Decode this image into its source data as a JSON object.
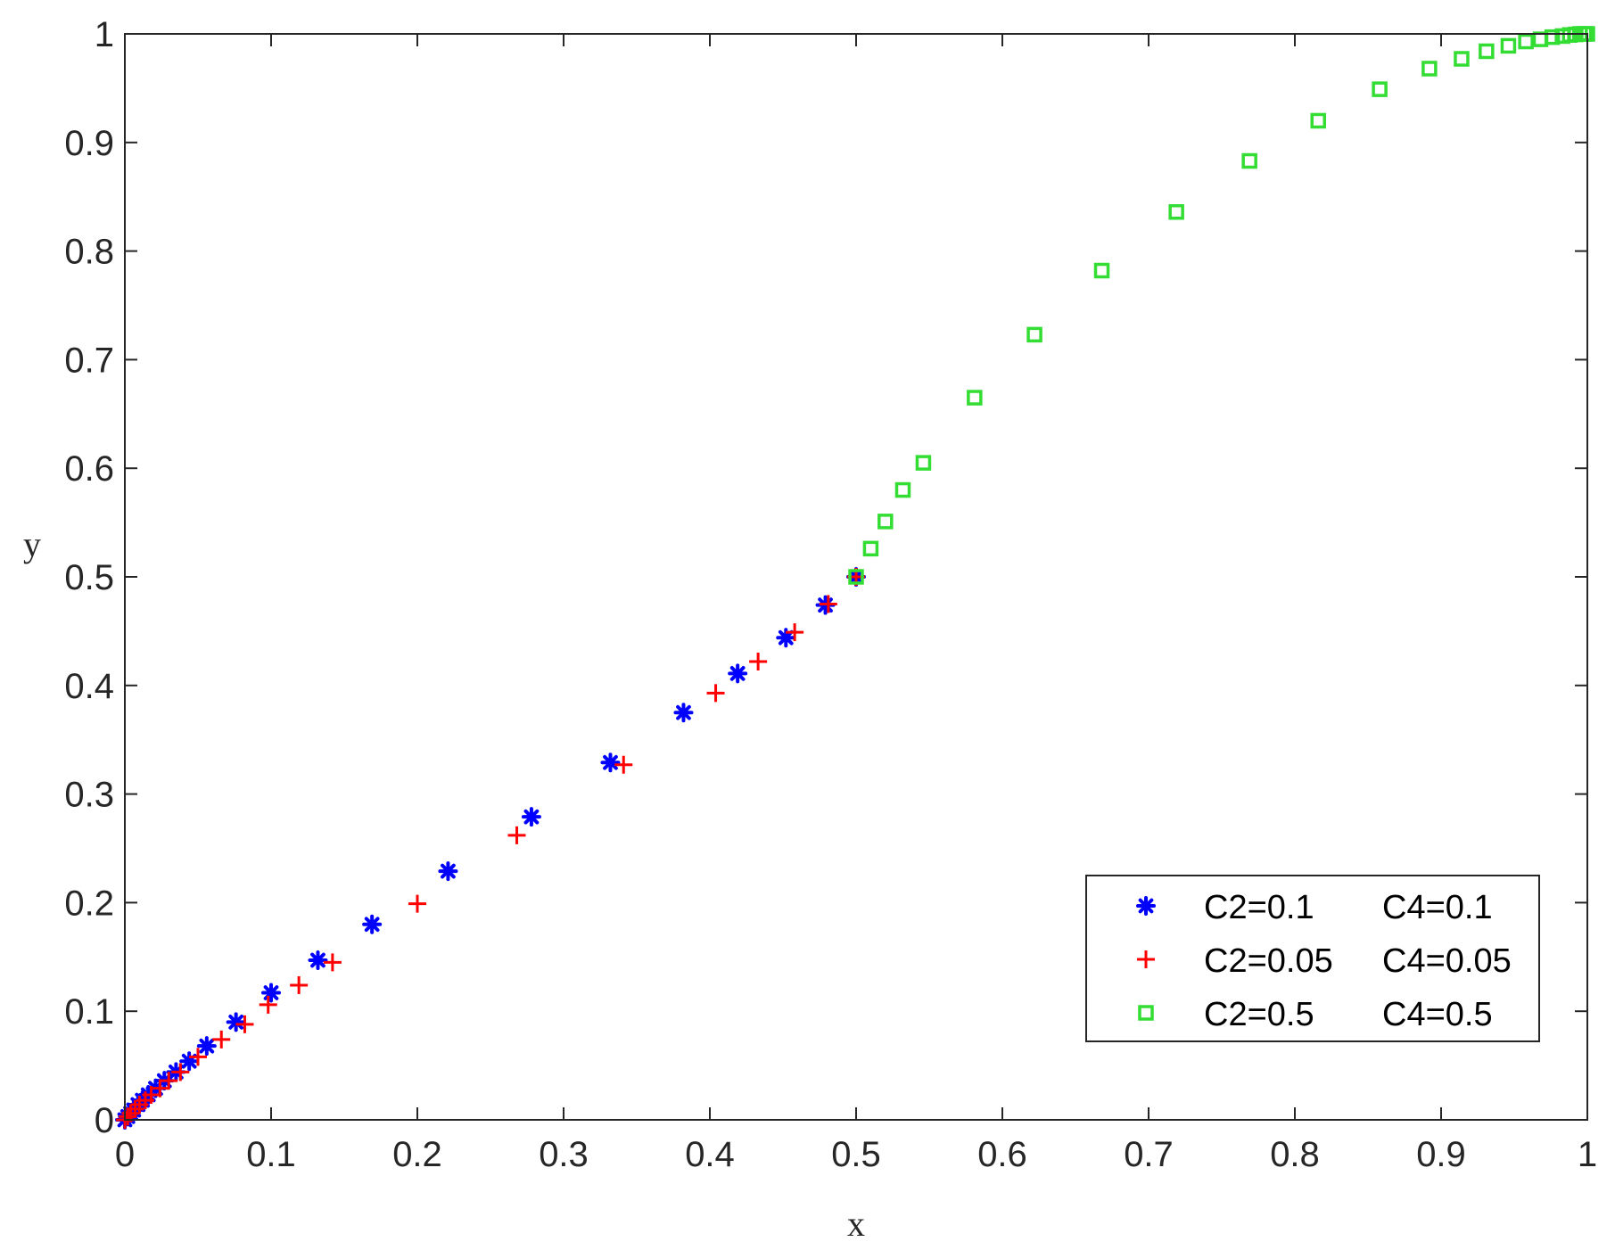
{
  "chart_data": {
    "type": "scatter",
    "title": "",
    "xlabel": "x",
    "ylabel": "y",
    "xlim": [
      0,
      1
    ],
    "ylim": [
      0,
      1
    ],
    "xticks": [
      0,
      0.1,
      0.2,
      0.3,
      0.4,
      0.5,
      0.6,
      0.7,
      0.8,
      0.9,
      1
    ],
    "xtick_labels": [
      "0",
      "0.1",
      "0.2",
      "0.3",
      "0.4",
      "0.5",
      "0.6",
      "0.7",
      "0.8",
      "0.9",
      "1"
    ],
    "yticks": [
      0,
      0.1,
      0.2,
      0.3,
      0.4,
      0.5,
      0.6,
      0.7,
      0.8,
      0.9,
      1
    ],
    "ytick_labels": [
      "0",
      "0.1",
      "0.2",
      "0.3",
      "0.4",
      "0.5",
      "0.6",
      "0.7",
      "0.8",
      "0.9",
      "1"
    ],
    "grid": false,
    "legend_position": "bottom-right",
    "series": [
      {
        "legend": [
          "C2=0.1",
          "C4=0.1"
        ],
        "marker": "asterisk",
        "color": "#0000ff",
        "points": [
          [
            0,
            0
          ],
          [
            0.002,
            0.003
          ],
          [
            0.004,
            0.006
          ],
          [
            0.006,
            0.009
          ],
          [
            0.009,
            0.014
          ],
          [
            0.012,
            0.018
          ],
          [
            0.016,
            0.023
          ],
          [
            0.021,
            0.029
          ],
          [
            0.027,
            0.036
          ],
          [
            0.035,
            0.044
          ],
          [
            0.044,
            0.054
          ],
          [
            0.056,
            0.068
          ],
          [
            0.076,
            0.09
          ],
          [
            0.1,
            0.117
          ],
          [
            0.132,
            0.147
          ],
          [
            0.169,
            0.18
          ],
          [
            0.221,
            0.229
          ],
          [
            0.278,
            0.279
          ],
          [
            0.332,
            0.329
          ],
          [
            0.382,
            0.375
          ],
          [
            0.419,
            0.411
          ],
          [
            0.452,
            0.444
          ],
          [
            0.479,
            0.474
          ],
          [
            0.5,
            0.5
          ]
        ]
      },
      {
        "legend": [
          "C2=0.05",
          "C4=0.05"
        ],
        "marker": "plus",
        "color": "#ff0000",
        "points": [
          [
            0,
            0
          ],
          [
            0.002,
            0.003
          ],
          [
            0.004,
            0.006
          ],
          [
            0.007,
            0.01
          ],
          [
            0.01,
            0.014
          ],
          [
            0.014,
            0.018
          ],
          [
            0.018,
            0.023
          ],
          [
            0.024,
            0.029
          ],
          [
            0.03,
            0.036
          ],
          [
            0.038,
            0.044
          ],
          [
            0.05,
            0.058
          ],
          [
            0.066,
            0.074
          ],
          [
            0.082,
            0.088
          ],
          [
            0.098,
            0.106
          ],
          [
            0.119,
            0.124
          ],
          [
            0.142,
            0.145
          ],
          [
            0.2,
            0.199
          ],
          [
            0.268,
            0.262
          ],
          [
            0.341,
            0.327
          ],
          [
            0.404,
            0.393
          ],
          [
            0.433,
            0.422
          ],
          [
            0.458,
            0.449
          ],
          [
            0.481,
            0.475
          ],
          [
            0.5,
            0.5
          ]
        ]
      },
      {
        "legend": [
          "C2=0.5",
          "C4=0.5"
        ],
        "marker": "square",
        "color": "#33dd33",
        "points": [
          [
            0.5,
            0.5
          ],
          [
            0.51,
            0.526
          ],
          [
            0.52,
            0.551
          ],
          [
            0.532,
            0.58
          ],
          [
            0.546,
            0.605
          ],
          [
            0.581,
            0.665
          ],
          [
            0.622,
            0.723
          ],
          [
            0.668,
            0.782
          ],
          [
            0.719,
            0.836
          ],
          [
            0.769,
            0.883
          ],
          [
            0.816,
            0.92
          ],
          [
            0.858,
            0.949
          ],
          [
            0.892,
            0.968
          ],
          [
            0.914,
            0.977
          ],
          [
            0.931,
            0.984
          ],
          [
            0.946,
            0.989
          ],
          [
            0.958,
            0.993
          ],
          [
            0.968,
            0.995
          ],
          [
            0.976,
            0.997
          ],
          [
            0.983,
            0.998
          ],
          [
            0.988,
            0.999
          ],
          [
            0.992,
            0.9995
          ],
          [
            0.995,
            1
          ],
          [
            0.998,
            1
          ],
          [
            1,
            1
          ]
        ]
      }
    ]
  }
}
